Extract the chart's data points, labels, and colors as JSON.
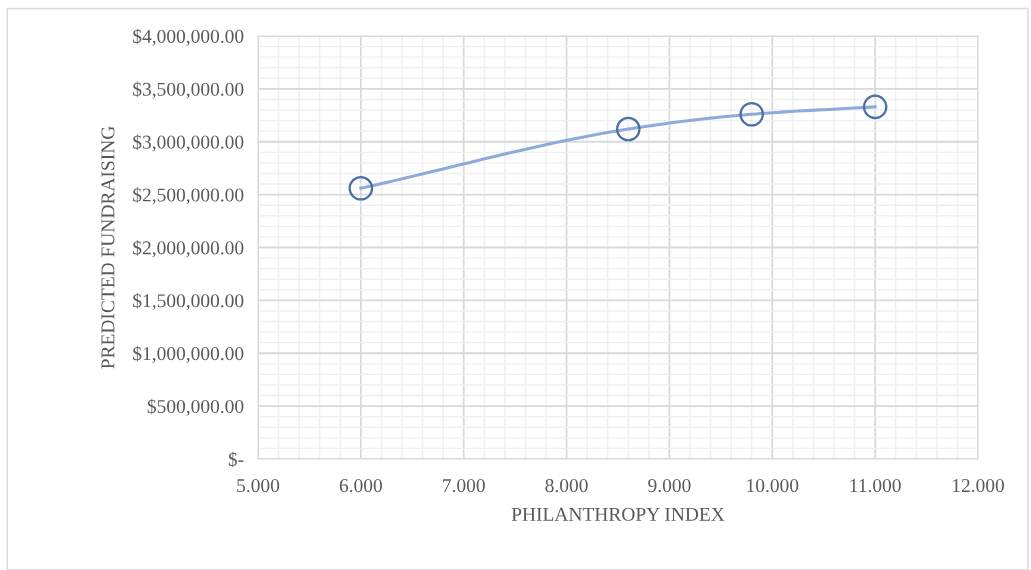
{
  "chart_data": {
    "type": "line",
    "xlabel": "PHILANTHROPY INDEX",
    "ylabel": "PREDICTED FUNDRAISING",
    "x": [
      6.0,
      8.6,
      9.8,
      11.0
    ],
    "series": [
      {
        "color": "#4a6fa5",
        "values": [
          2560000,
          3120000,
          3260000,
          3330000
        ]
      }
    ],
    "marker": "circle",
    "line_style": "solid",
    "grid": true,
    "xlim": [
      5,
      12
    ],
    "xticks": [
      {
        "value": 5,
        "label": "5.000"
      },
      {
        "value": 6,
        "label": "6.000"
      },
      {
        "value": 7,
        "label": "7.000"
      },
      {
        "value": 8,
        "label": "8.000"
      },
      {
        "value": 9,
        "label": "9.000"
      },
      {
        "value": 10,
        "label": "10.000"
      },
      {
        "value": 11,
        "label": "11.000"
      },
      {
        "value": 12,
        "label": "12.000"
      }
    ],
    "ylim": [
      0,
      4000000
    ],
    "yticks": [
      {
        "value": 0,
        "label": "$-"
      },
      {
        "value": 500000,
        "label": "$500,000.00"
      },
      {
        "value": 1000000,
        "label": "$1,000,000.00"
      },
      {
        "value": 1500000,
        "label": "$1,500,000.00"
      },
      {
        "value": 2000000,
        "label": "$2,000,000.00"
      },
      {
        "value": 2500000,
        "label": "$2,500,000.00"
      },
      {
        "value": 3000000,
        "label": "$3,000,000.00"
      },
      {
        "value": 3500000,
        "label": "$3,500,000.00"
      },
      {
        "value": 4000000,
        "label": "$4,000,000.00"
      }
    ]
  }
}
